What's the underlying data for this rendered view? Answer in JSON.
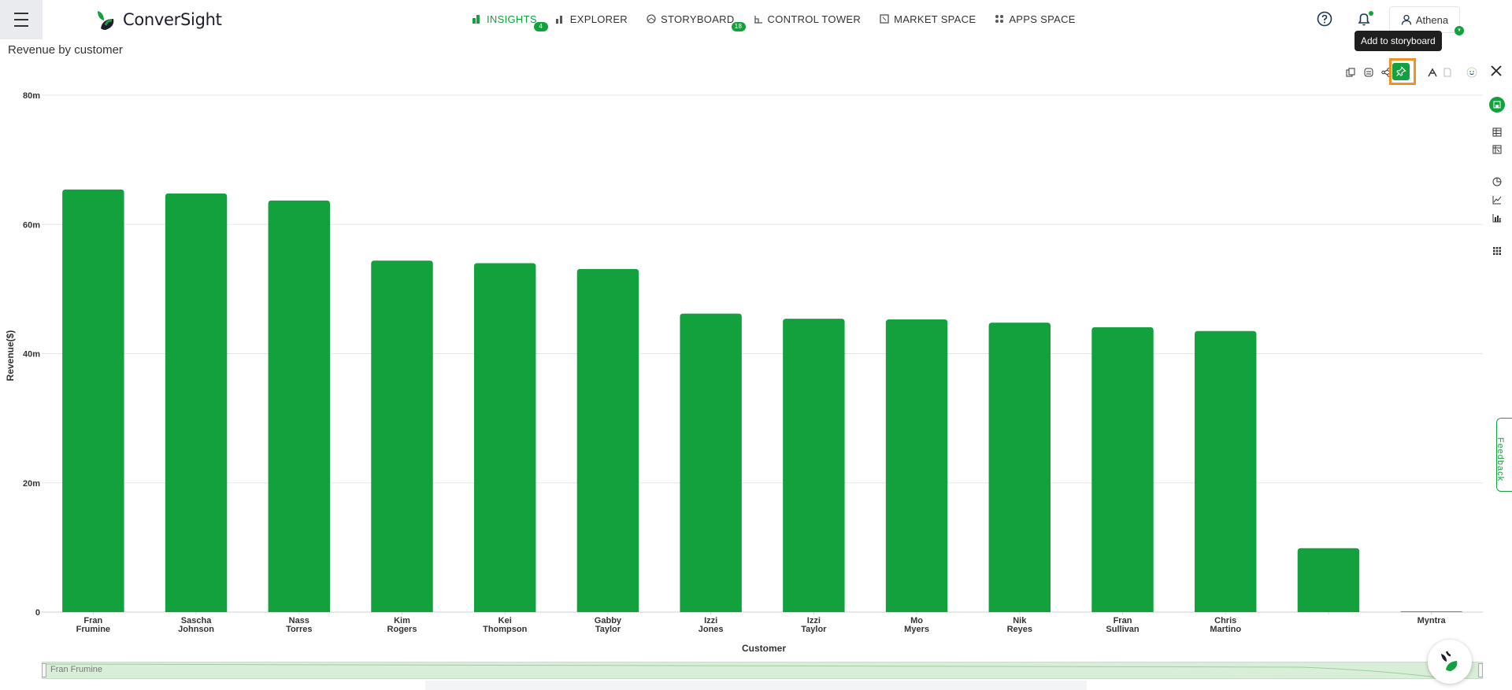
{
  "app": {
    "logo_text": "ConverSight"
  },
  "nav": [
    {
      "label": "INSIGHTS",
      "badge": "4",
      "active": true
    },
    {
      "label": "EXPLORER",
      "badge": ""
    },
    {
      "label": "STORYBOARD",
      "badge": "18"
    },
    {
      "label": "CONTROL TOWER",
      "badge": ""
    },
    {
      "label": "MARKET SPACE",
      "badge": ""
    },
    {
      "label": "APPS SPACE",
      "badge": ""
    }
  ],
  "user": {
    "name": "Athena"
  },
  "tooltip": {
    "text": "Add to storyboard"
  },
  "page": {
    "title": "Revenue by customer"
  },
  "feedback": {
    "label": "Feedback"
  },
  "scrollbar": {
    "label": "Fran Frumine"
  },
  "colors": {
    "accent": "#12a13d",
    "highlight": "#f39023"
  },
  "icons": {
    "toolbar": [
      "copy-icon",
      "database-icon",
      "share-icon",
      "pin-icon",
      "chart-settings-icon",
      "document-icon",
      "smiley-icon",
      "close-icon"
    ],
    "sidebar": [
      "save-icon",
      "table-icon",
      "pivot-table-icon",
      "pie-chart-icon",
      "line-chart-icon",
      "bar-chart-icon",
      "grid-icon"
    ]
  },
  "chart_data": {
    "type": "bar",
    "title": "Revenue by customer",
    "xlabel": "Customer",
    "ylabel": "Revenue($)",
    "ylim": [
      0,
      80000000
    ],
    "yticks": [
      "0",
      "20m",
      "40m",
      "60m",
      "80m"
    ],
    "grid": true,
    "categories": [
      [
        "Fran",
        "Frumine"
      ],
      [
        "Sascha",
        "Johnson"
      ],
      [
        "Nass",
        "Torres"
      ],
      [
        "Kim",
        "Rogers"
      ],
      [
        "Kei",
        "Thompson"
      ],
      [
        "Gabby",
        "Taylor"
      ],
      [
        "Izzi",
        "Jones"
      ],
      [
        "Izzi",
        "Taylor"
      ],
      [
        "Mo",
        "Myers"
      ],
      [
        "Nik",
        "Reyes"
      ],
      [
        "Fran",
        "Sullivan"
      ],
      [
        "Chris",
        "Martino"
      ],
      [
        "",
        ""
      ],
      [
        "Myntra",
        ""
      ]
    ],
    "values": [
      65400000,
      64800000,
      63700000,
      54400000,
      54000000,
      53100000,
      46200000,
      45400000,
      45300000,
      44800000,
      44100000,
      43500000,
      9900000,
      100000
    ],
    "bar_color": "#12a13d"
  }
}
